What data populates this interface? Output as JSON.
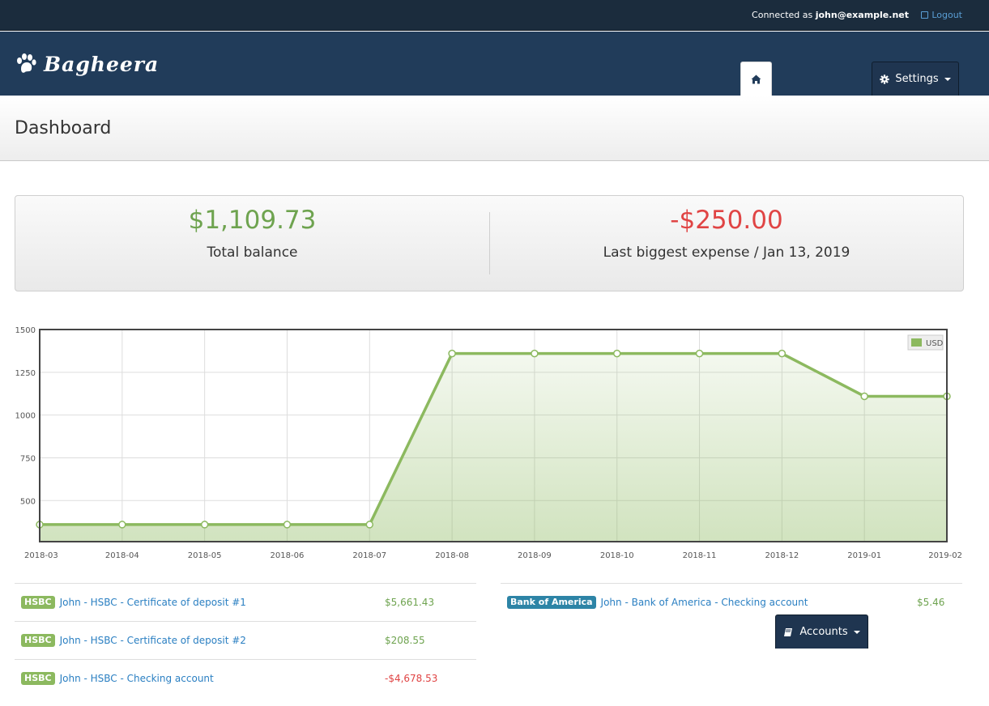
{
  "topbar": {
    "connected_prefix": "Connected as",
    "user": "john@example.net",
    "logout_label": "Logout"
  },
  "brand": {
    "name": "Bagheera"
  },
  "nav": {
    "home_icon": "home-icon",
    "accounts_label": "Accounts",
    "settings_label": "Settings"
  },
  "page": {
    "title": "Dashboard"
  },
  "summary": {
    "total_balance": "$1,109.73",
    "total_balance_label": "Total balance",
    "biggest_expense": "-$250.00",
    "biggest_expense_label": "Last biggest expense / Jan 13, 2019"
  },
  "colors": {
    "positive": "#6ea34f",
    "negative": "#e04444",
    "series": "#8cb95f",
    "navbar": "#213c5a"
  },
  "chart_data": {
    "type": "area",
    "x": [
      "2018-03",
      "2018-04",
      "2018-05",
      "2018-06",
      "2018-07",
      "2018-08",
      "2018-09",
      "2018-10",
      "2018-11",
      "2018-12",
      "2019-01",
      "2019-02"
    ],
    "series": [
      {
        "name": "USD",
        "values": [
          359.73,
          359.73,
          359.73,
          359.73,
          359.73,
          1359.73,
          1359.73,
          1359.73,
          1359.73,
          1359.73,
          1109.73,
          1109.73
        ]
      }
    ],
    "yticks": [
      500,
      750,
      1000,
      1250,
      1500
    ],
    "ylim": [
      260,
      1500
    ],
    "grid": true,
    "legend": "top-right"
  },
  "accounts": {
    "left": [
      {
        "bank": "HSBC",
        "name": "John - HSBC - Certificate of deposit #1",
        "amount": "$5,661.43",
        "sign": "pos"
      },
      {
        "bank": "HSBC",
        "name": "John - HSBC - Certificate of deposit #2",
        "amount": "$208.55",
        "sign": "pos"
      },
      {
        "bank": "HSBC",
        "name": "John - HSBC - Checking account",
        "amount": "-$4,678.53",
        "sign": "neg"
      }
    ],
    "right": [
      {
        "bank": "Bank of America",
        "name": "John - Bank of America - Checking account",
        "amount": "$5.46",
        "sign": "pos"
      }
    ]
  }
}
